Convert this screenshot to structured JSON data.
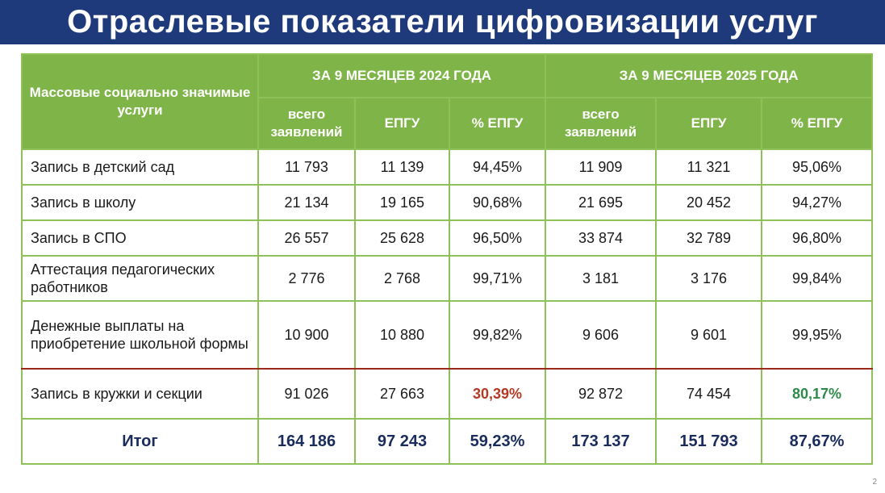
{
  "title": "Отраслевые показатели цифровизации услуг",
  "table": {
    "corner_header": "Массовые социально значимые услуги",
    "period_1": "ЗА 9 МЕСЯЦЕВ 2024 ГОДА",
    "period_2": "ЗА 9 МЕСЯЦЕВ 2025 ГОДА",
    "sub_headers": [
      "всего заявлений",
      "ЕПГУ",
      "% ЕПГУ",
      "всего заявлений",
      "ЕПГУ",
      "% ЕПГУ"
    ],
    "rows": [
      {
        "name": "Запись в детский сад",
        "v": [
          "11 793",
          "11 139",
          "94,45%",
          "11 909",
          "11 321",
          "95,06%"
        ]
      },
      {
        "name": "Запись в школу",
        "v": [
          "21 134",
          "19 165",
          "90,68%",
          "21 695",
          "20 452",
          "94,27%"
        ]
      },
      {
        "name": "Запись в СПО",
        "v": [
          "26 557",
          "25 628",
          "96,50%",
          "33 874",
          "32 789",
          "96,80%"
        ]
      },
      {
        "name": "Аттестация педагогических работников",
        "v": [
          "2 776",
          "2 768",
          "99,71%",
          "3 181",
          "3 176",
          "99,84%"
        ]
      },
      {
        "name": "Денежные выплаты на приобретение школьной формы",
        "v": [
          "10 900",
          "10 880",
          "99,82%",
          "9 606",
          "9 601",
          "99,95%"
        ]
      },
      {
        "name": "Запись в кружки и секции",
        "v": [
          "91 026",
          "27 663",
          "30,39%",
          "92 872",
          "74 454",
          "80,17%"
        ]
      }
    ],
    "total": {
      "name": "Итог",
      "v": [
        "164 186",
        "97 243",
        "59,23%",
        "173 137",
        "151 793",
        "87,67%"
      ]
    }
  },
  "colors": {
    "title_bg": "#1f3a7a",
    "header_bg": "#7fb548",
    "pct_red": "#b23a25",
    "pct_green": "#2e8a4a",
    "pct_yellow": "#f2b01e"
  },
  "page_number": "2"
}
